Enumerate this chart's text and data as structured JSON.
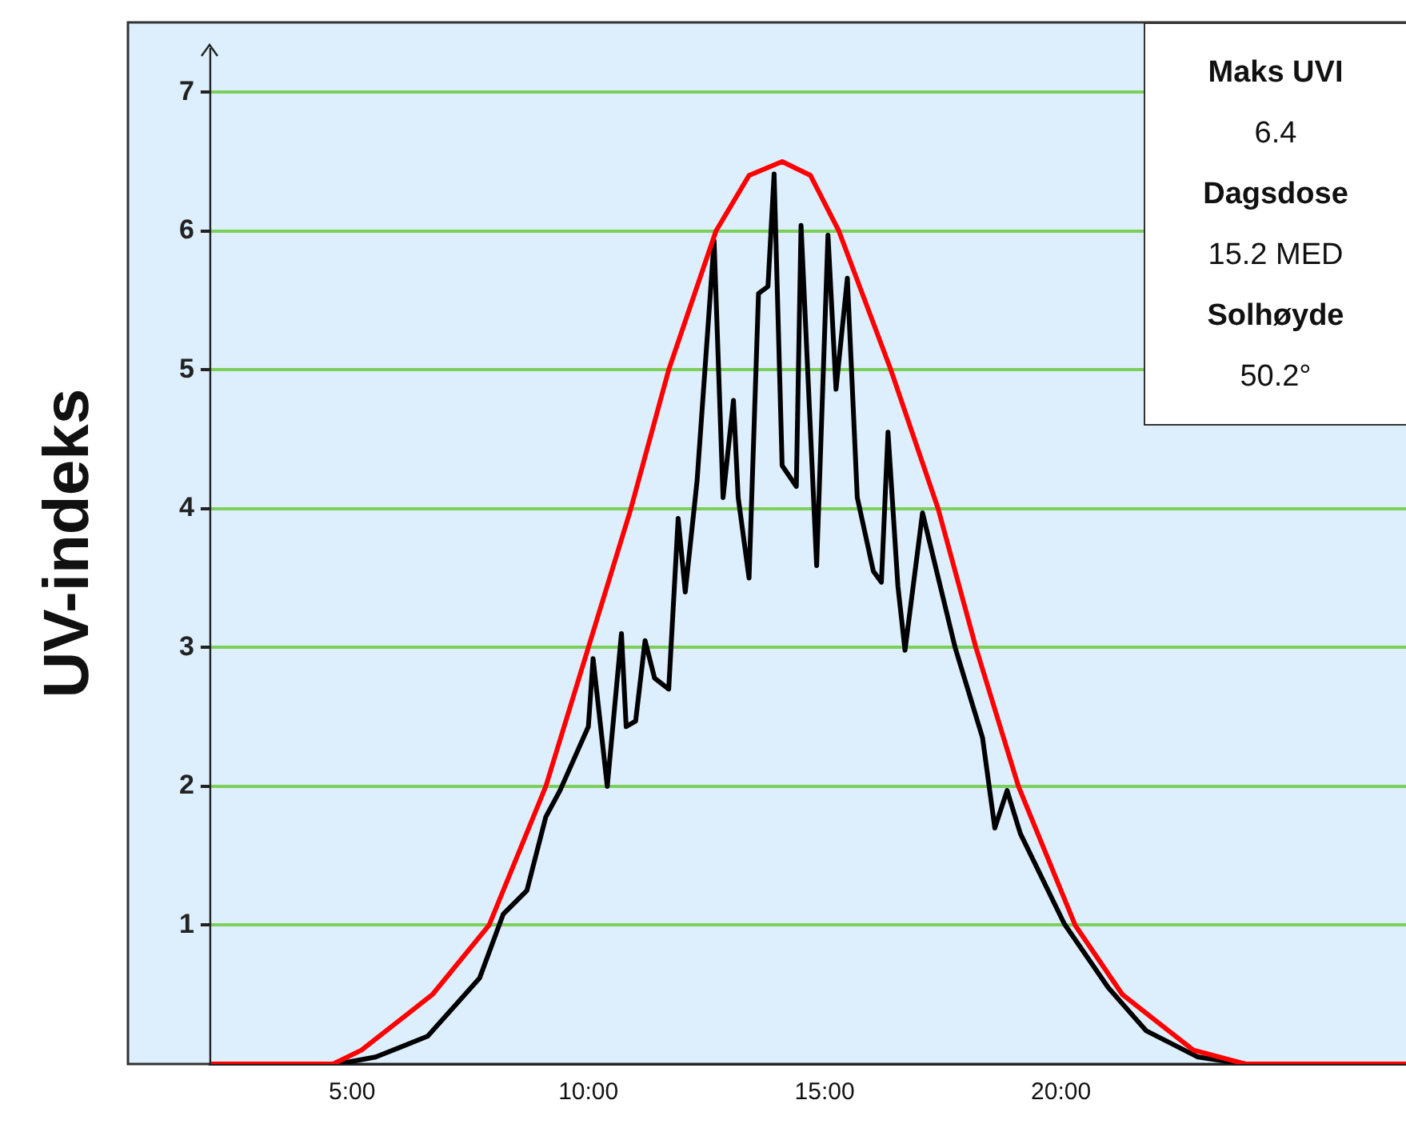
{
  "chart_data": {
    "type": "line",
    "ylabel": "UV-indeks",
    "xlim": [
      2,
      27.3
    ],
    "ylim": [
      0,
      7.5
    ],
    "xticks": [
      {
        "value": 5,
        "label": "5:00"
      },
      {
        "value": 10,
        "label": "10:00"
      },
      {
        "value": 15,
        "label": "15:00"
      },
      {
        "value": 20,
        "label": "20:00"
      }
    ],
    "yticks": [
      1,
      2,
      3,
      4,
      5,
      6,
      7
    ],
    "grid": "y",
    "legend": false,
    "marker": "none",
    "line_style": "solid",
    "annotations": [
      "Maks UVI",
      "6.4",
      "Dagsdose",
      "15.2 MED",
      "Solhøyde",
      "50.2°"
    ],
    "series": [
      {
        "color": "#ff0000",
        "x": [
          2,
          4.6,
          5.2,
          6.7,
          7.9,
          9.1,
          10.0,
          10.9,
          11.7,
          12.7,
          13.4,
          14.1,
          14.7,
          15.3,
          16.4,
          17.4,
          18.2,
          19.1,
          20.3,
          21.3,
          22.8,
          23.9,
          27.3
        ],
        "values": [
          0,
          0,
          0.1,
          0.5,
          1,
          2,
          3,
          4,
          5,
          6,
          6.4,
          6.5,
          6.4,
          6,
          5,
          4,
          3,
          2,
          1,
          0.5,
          0.1,
          0,
          0
        ]
      },
      {
        "color": "#000000",
        "x": [
          4.7,
          5.5,
          6.6,
          7.7,
          8.2,
          8.7,
          9.1,
          9.4,
          10.0,
          10.1,
          10.4,
          10.7,
          10.8,
          11.0,
          11.2,
          11.4,
          11.7,
          11.9,
          12.05,
          12.3,
          12.66,
          12.85,
          13.07,
          13.17,
          13.4,
          13.6,
          13.8,
          13.93,
          14.1,
          14.4,
          14.5,
          14.83,
          15.07,
          15.24,
          15.48,
          15.69,
          16.03,
          16.2,
          16.34,
          16.55,
          16.7,
          17.07,
          17.76,
          18.34,
          18.6,
          18.86,
          19.14,
          20.07,
          21.0,
          21.8,
          22.9,
          23.9
        ],
        "values": [
          0,
          0.05,
          0.2,
          0.62,
          1.08,
          1.25,
          1.78,
          1.97,
          2.43,
          2.92,
          2.0,
          3.1,
          2.43,
          2.47,
          3.05,
          2.78,
          2.7,
          3.93,
          3.4,
          4.2,
          5.93,
          4.08,
          4.78,
          4.08,
          3.5,
          5.55,
          5.6,
          6.41,
          4.31,
          4.16,
          6.04,
          3.59,
          5.97,
          4.86,
          5.66,
          4.08,
          3.55,
          3.47,
          4.55,
          3.44,
          2.98,
          3.97,
          3.0,
          2.35,
          1.7,
          1.97,
          1.66,
          1.01,
          0.55,
          0.24,
          0.05,
          0
        ]
      }
    ]
  }
}
